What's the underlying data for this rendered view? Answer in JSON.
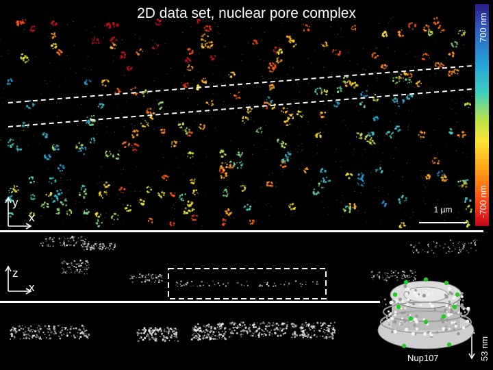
{
  "title": "2D data set, nuclear pore complex",
  "colorbar": {
    "max_label": "700 nm",
    "min_label": "-700 nm"
  },
  "top_panel": {
    "axis_y": "y",
    "axis_x": "x",
    "scale_bar": "1 µm"
  },
  "middle_panel": {
    "axis_z": "z",
    "axis_x": "x"
  },
  "bottom_panel": {
    "height_label": "53 nm",
    "model_label": "Nup107"
  },
  "colors": {
    "background": "#000000",
    "marker": "#22cc22"
  }
}
